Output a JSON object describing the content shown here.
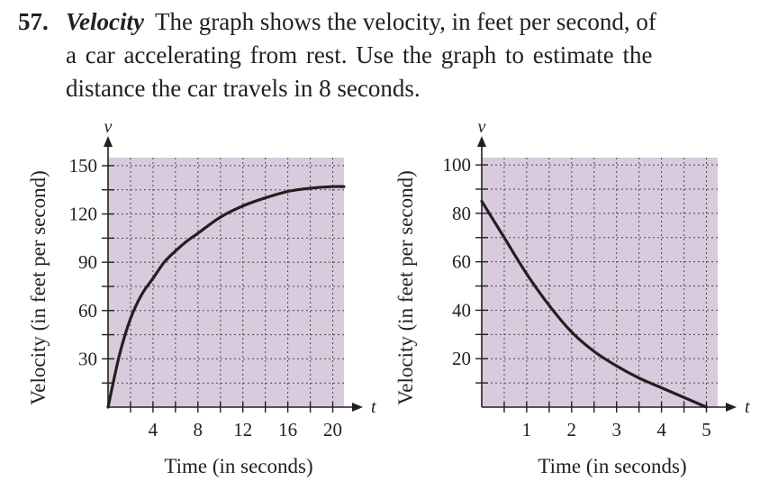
{
  "problem": {
    "number": "57.",
    "title": "Velocity",
    "line1": "The graph shows the velocity, in feet per second, of",
    "line2": "a car accelerating from rest. Use the graph to estimate the",
    "line3": "distance the car travels in 8 seconds."
  },
  "colors": {
    "plot_background": "#d9cade",
    "curve": "#231f20",
    "grid": "#4a4a4a"
  },
  "chart_data": [
    {
      "type": "line",
      "xlabel": "Time (in seconds)",
      "ylabel": "Velocity (in feet per second)",
      "x_axis_var": "t",
      "y_axis_var": "v",
      "xlim": [
        0,
        21
      ],
      "ylim": [
        0,
        155
      ],
      "x_ticks": [
        4,
        8,
        12,
        16,
        20
      ],
      "y_ticks": [
        30,
        60,
        90,
        120,
        150
      ],
      "x_tick_labels": [
        "4",
        "8",
        "12",
        "16",
        "20"
      ],
      "y_tick_labels": [
        "30",
        "60",
        "90",
        "120",
        "150"
      ],
      "grid": true,
      "grid_step_x": 2,
      "grid_step_y": 15,
      "x": [
        0,
        1,
        2,
        3,
        4,
        5,
        6,
        7,
        8,
        10,
        12,
        14,
        16,
        18,
        20,
        21
      ],
      "y": [
        0,
        32,
        55,
        70,
        80,
        90,
        97,
        103,
        108,
        118,
        125,
        130,
        134,
        136,
        137,
        137
      ]
    },
    {
      "type": "line",
      "xlabel": "Time (in seconds)",
      "ylabel": "Velocity (in feet per second)",
      "x_axis_var": "t",
      "y_axis_var": "v",
      "xlim": [
        0,
        5.25
      ],
      "ylim": [
        0,
        103
      ],
      "x_ticks": [
        1,
        2,
        3,
        4,
        5
      ],
      "y_ticks": [
        20,
        40,
        60,
        80,
        100
      ],
      "x_tick_labels": [
        "1",
        "2",
        "3",
        "4",
        "5"
      ],
      "y_tick_labels": [
        "20",
        "40",
        "60",
        "80",
        "100"
      ],
      "grid": true,
      "grid_step_x": 0.5,
      "grid_step_y": 10,
      "x": [
        0,
        0.5,
        1,
        1.5,
        2,
        2.5,
        3,
        3.5,
        4,
        4.5,
        5
      ],
      "y": [
        85,
        70,
        55,
        42,
        31,
        23,
        17,
        12,
        8,
        4,
        0
      ]
    }
  ]
}
